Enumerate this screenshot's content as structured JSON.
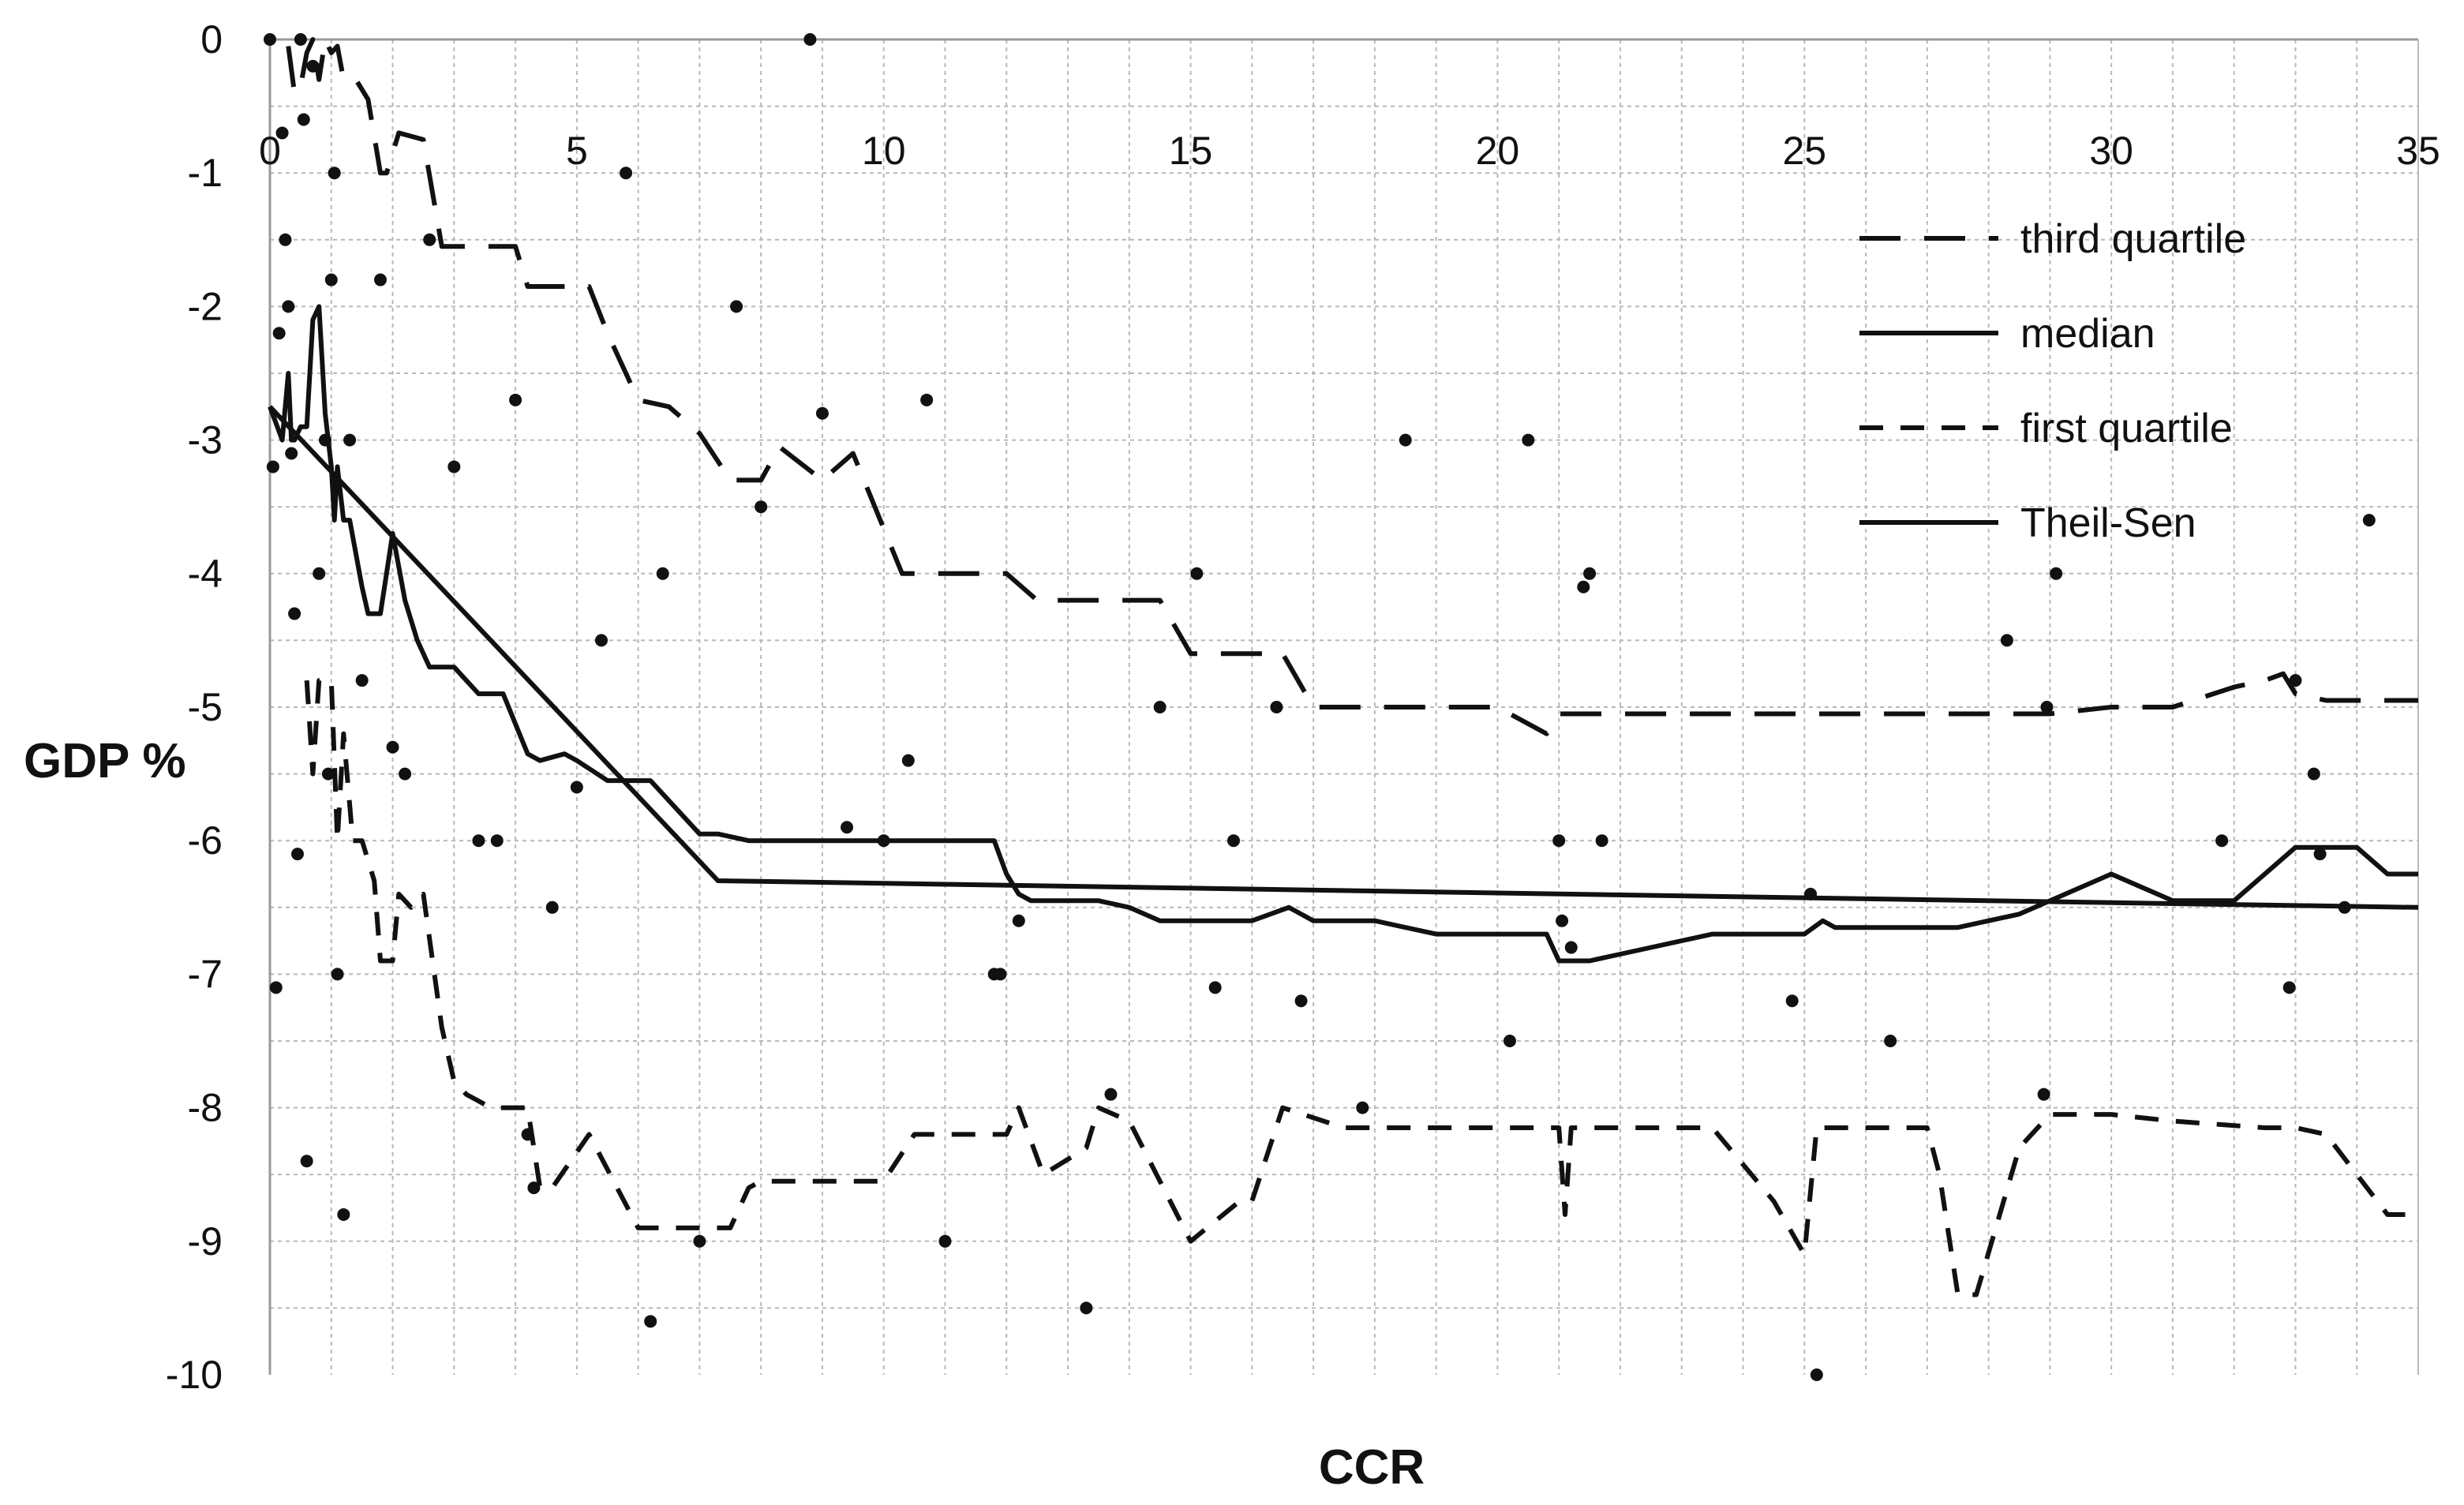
{
  "chart_data": {
    "type": "line",
    "title": "",
    "xlabel": "CCR",
    "ylabel": "GDP %",
    "xlim": [
      0,
      35
    ],
    "ylim": [
      -10,
      0
    ],
    "x_ticks": [
      0,
      5,
      10,
      15,
      20,
      25,
      30,
      35
    ],
    "y_ticks": [
      0,
      -1,
      -2,
      -3,
      -4,
      -5,
      -6,
      -7,
      -8,
      -9,
      -10
    ],
    "grid": true,
    "legend_position": "top-right",
    "colors": {
      "line": "#111111",
      "grid": "#b8b8b8",
      "background": "#ffffff"
    },
    "series": [
      {
        "name": "third quartile",
        "style": "long-dash",
        "x": [
          0.3,
          0.4,
          0.5,
          0.6,
          0.7,
          0.8,
          0.9,
          1.0,
          1.1,
          1.2,
          1.4,
          1.6,
          1.8,
          1.9,
          2.1,
          2.5,
          2.8,
          3.0,
          4.0,
          4.2,
          5.2,
          5.5,
          6.0,
          6.5,
          7.0,
          7.5,
          8.0,
          8.3,
          9.0,
          9.5,
          10.3,
          11.5,
          12.0,
          12.5,
          13.0,
          14.5,
          15.0,
          15.5,
          16.5,
          17.0,
          20.0,
          20.8,
          21.0,
          21.5,
          25.0,
          28.5,
          29.0,
          30.0,
          31.0,
          32.0,
          32.5,
          32.8,
          33.0,
          33.5,
          35.0
        ],
        "values": [
          -0.05,
          -0.4,
          -0.35,
          -0.1,
          0,
          -0.3,
          0,
          -0.1,
          -0.05,
          -0.3,
          -0.3,
          -0.45,
          -1.0,
          -1.0,
          -0.7,
          -0.75,
          -1.55,
          -1.55,
          -1.55,
          -1.85,
          -1.85,
          -2.2,
          -2.7,
          -2.75,
          -2.95,
          -3.3,
          -3.3,
          -3.05,
          -3.3,
          -3.1,
          -4.0,
          -4.0,
          -4.0,
          -4.2,
          -4.2,
          -4.2,
          -4.6,
          -4.6,
          -4.6,
          -5.0,
          -5.0,
          -5.2,
          -5.05,
          -5.05,
          -5.05,
          -5.05,
          -5.05,
          -5.0,
          -5.0,
          -4.85,
          -4.8,
          -4.75,
          -4.9,
          -4.95,
          -4.95
        ]
      },
      {
        "name": "median",
        "style": "solid",
        "x": [
          0,
          0.2,
          0.3,
          0.35,
          0.4,
          0.5,
          0.6,
          0.7,
          0.8,
          0.9,
          1.0,
          1.05,
          1.1,
          1.2,
          1.3,
          1.5,
          1.6,
          1.8,
          2.0,
          2.2,
          2.4,
          2.6,
          2.8,
          3.0,
          3.4,
          3.8,
          4.2,
          4.4,
          4.8,
          5.0,
          5.5,
          6.2,
          7.0,
          7.3,
          7.8,
          10.5,
          11.8,
          12.0,
          12.2,
          12.4,
          13.5,
          14.0,
          14.5,
          16.0,
          16.6,
          17.0,
          18.0,
          19.0,
          20.0,
          20.8,
          21.0,
          21.5,
          22.0,
          23.5,
          25.0,
          25.3,
          25.5,
          27.5,
          28.5,
          30.0,
          31.0,
          31.5,
          32.0,
          32.5,
          33.0,
          34.0,
          34.5,
          35.0
        ],
        "values": [
          -2.75,
          -3.0,
          -2.5,
          -3.0,
          -3.0,
          -2.9,
          -2.9,
          -2.1,
          -2.0,
          -2.8,
          -3.2,
          -3.6,
          -3.2,
          -3.6,
          -3.6,
          -4.1,
          -4.3,
          -4.3,
          -3.7,
          -4.2,
          -4.5,
          -4.7,
          -4.7,
          -4.7,
          -4.9,
          -4.9,
          -5.35,
          -5.4,
          -5.35,
          -5.4,
          -5.55,
          -5.55,
          -5.95,
          -5.95,
          -6.0,
          -6.0,
          -6.0,
          -6.25,
          -6.4,
          -6.45,
          -6.45,
          -6.5,
          -6.6,
          -6.6,
          -6.5,
          -6.6,
          -6.6,
          -6.7,
          -6.7,
          -6.7,
          -6.9,
          -6.9,
          -6.85,
          -6.7,
          -6.7,
          -6.6,
          -6.65,
          -6.65,
          -6.55,
          -6.25,
          -6.45,
          -6.45,
          -6.45,
          -6.25,
          -6.05,
          -6.05,
          -6.25,
          -6.25
        ]
      },
      {
        "name": "first quartile",
        "style": "short-dash",
        "x": [
          0.6,
          0.7,
          0.8,
          0.9,
          1.0,
          1.1,
          1.2,
          1.35,
          1.5,
          1.7,
          1.8,
          2.0,
          2.1,
          2.3,
          2.5,
          2.8,
          3.0,
          3.2,
          3.6,
          4.2,
          4.4,
          4.6,
          5.2,
          6.0,
          6.5,
          7.5,
          7.8,
          8.0,
          9.5,
          10.0,
          10.5,
          11.5,
          12.0,
          12.2,
          12.6,
          13.3,
          13.5,
          14.0,
          15.0,
          15.8,
          16.0,
          16.5,
          17.5,
          20.0,
          21.0,
          21.1,
          21.2,
          22.0,
          23.5,
          24.5,
          25.0,
          25.2,
          26.5,
          27.0,
          27.2,
          27.5,
          27.8,
          28.5,
          29.0,
          30.0,
          31.0,
          32.5,
          33.0,
          33.5,
          34.0,
          34.5,
          35.0
        ],
        "values": [
          -4.8,
          -5.5,
          -4.8,
          -4.8,
          -4.8,
          -6.0,
          -5.2,
          -6.0,
          -6.0,
          -6.3,
          -6.9,
          -6.9,
          -6.4,
          -6.5,
          -6.4,
          -7.4,
          -7.8,
          -7.9,
          -8.0,
          -8.0,
          -8.6,
          -8.6,
          -8.2,
          -8.9,
          -8.9,
          -8.9,
          -8.6,
          -8.55,
          -8.55,
          -8.55,
          -8.2,
          -8.2,
          -8.2,
          -8.0,
          -8.5,
          -8.3,
          -8.0,
          -8.1,
          -9.0,
          -8.7,
          -8.7,
          -8.0,
          -8.15,
          -8.15,
          -8.15,
          -8.8,
          -8.15,
          -8.15,
          -8.15,
          -8.7,
          -9.1,
          -8.15,
          -8.15,
          -8.15,
          -8.5,
          -9.4,
          -9.4,
          -8.3,
          -8.05,
          -8.05,
          -8.1,
          -8.15,
          -8.15,
          -8.2,
          -8.5,
          -8.8,
          -8.8
        ]
      },
      {
        "name": "Theil-Sen",
        "style": "solid",
        "x": [
          0,
          7.3,
          35
        ],
        "values": [
          -2.75,
          -6.3,
          -6.5
        ]
      }
    ],
    "scatter": {
      "x": [
        0,
        0.05,
        0.1,
        0.15,
        0.2,
        0.25,
        0.3,
        0.35,
        0.4,
        0.45,
        0.5,
        0.55,
        0.6,
        0.7,
        0.8,
        0.9,
        0.95,
        1.0,
        1.05,
        1.1,
        1.2,
        1.3,
        1.5,
        1.8,
        2.0,
        2.2,
        2.6,
        3.0,
        3.4,
        3.7,
        4.0,
        4.2,
        4.3,
        4.6,
        5.0,
        5.4,
        5.8,
        6.2,
        6.4,
        7.0,
        7.6,
        8.0,
        8.8,
        9.0,
        9.4,
        10.0,
        10.4,
        10.7,
        11.0,
        11.8,
        11.9,
        12.2,
        13.3,
        13.7,
        14.5,
        15.1,
        15.4,
        15.7,
        16.4,
        16.8,
        17.8,
        18.5,
        20.2,
        20.5,
        21.0,
        21.05,
        21.2,
        21.4,
        21.5,
        21.7,
        24.8,
        25.1,
        25.2,
        26.4,
        28.3,
        28.9,
        28.95,
        29.1,
        31.8,
        32.9,
        33.0,
        33.3,
        33.4,
        33.8,
        34.2
      ],
      "values": [
        0,
        -3.2,
        -7.1,
        -2.2,
        -0.7,
        -1.5,
        -2.0,
        -3.1,
        -4.3,
        -6.1,
        0,
        -0.6,
        -8.4,
        -0.2,
        -4.0,
        -3.0,
        -5.5,
        -1.8,
        -1.0,
        -7.0,
        -8.8,
        -3.0,
        -4.8,
        -1.8,
        -5.3,
        -5.5,
        -1.5,
        -3.2,
        -6.0,
        -6.0,
        -2.7,
        -8.2,
        -8.6,
        -6.5,
        -5.6,
        -4.5,
        -1.0,
        -9.6,
        -4.0,
        -9.0,
        -2.0,
        -3.5,
        0,
        -2.8,
        -5.9,
        -6.0,
        -5.4,
        -2.7,
        -9.0,
        -7.0,
        -7.0,
        -6.6,
        -9.5,
        -7.9,
        -5.0,
        -4.0,
        -7.1,
        -6.0,
        -5.0,
        -7.2,
        -8.0,
        -3.0,
        -7.5,
        -3.0,
        -6.0,
        -6.6,
        -6.8,
        -4.1,
        -4.0,
        -6.0,
        -7.2,
        -6.4,
        -10.0,
        -7.5,
        -4.5,
        -7.9,
        -5.0,
        -4.0,
        -6.0,
        -7.1,
        -4.8,
        -5.5,
        -6.1,
        -6.5,
        -3.6
      ]
    }
  }
}
